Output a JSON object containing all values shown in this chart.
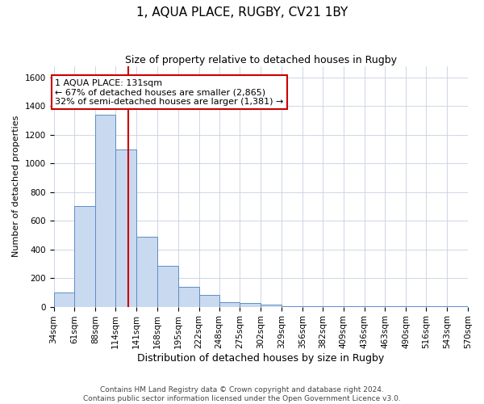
{
  "title": "1, AQUA PLACE, RUGBY, CV21 1BY",
  "subtitle": "Size of property relative to detached houses in Rugby",
  "xlabel": "Distribution of detached houses by size in Rugby",
  "ylabel": "Number of detached properties",
  "footer_line1": "Contains HM Land Registry data © Crown copyright and database right 2024.",
  "footer_line2": "Contains public sector information licensed under the Open Government Licence v3.0.",
  "bin_edges": [
    34,
    61,
    88,
    114,
    141,
    168,
    195,
    222,
    248,
    275,
    302,
    329,
    356,
    382,
    409,
    436,
    463,
    490,
    516,
    543,
    570
  ],
  "bar_heights": [
    100,
    700,
    1340,
    1100,
    490,
    285,
    140,
    80,
    30,
    25,
    15,
    5,
    5,
    5,
    5,
    5,
    5,
    5,
    5,
    5
  ],
  "bar_color": "#c9d9f0",
  "bar_edge_color": "#5b8ec4",
  "property_line_x": 131,
  "property_line_color": "#cc0000",
  "annotation_text": "1 AQUA PLACE: 131sqm\n← 67% of detached houses are smaller (2,865)\n32% of semi-detached houses are larger (1,381) →",
  "annotation_box_color": "#ffffff",
  "annotation_box_edge": "#cc0000",
  "ylim": [
    0,
    1680
  ],
  "yticks": [
    0,
    200,
    400,
    600,
    800,
    1000,
    1200,
    1400,
    1600
  ],
  "background_color": "#ffffff",
  "grid_color": "#c8d0e0",
  "title_fontsize": 11,
  "subtitle_fontsize": 9,
  "xlabel_fontsize": 9,
  "ylabel_fontsize": 8,
  "tick_fontsize": 7.5,
  "footer_fontsize": 6.5,
  "annotation_fontsize": 8
}
